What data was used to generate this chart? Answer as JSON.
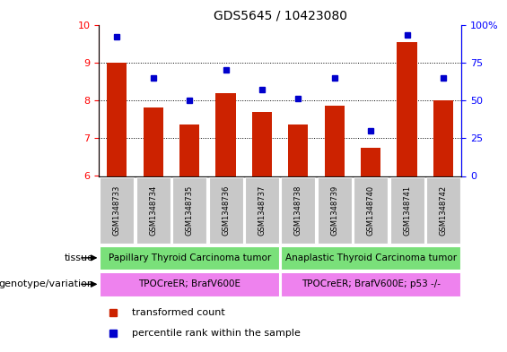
{
  "title": "GDS5645 / 10423080",
  "samples": [
    "GSM1348733",
    "GSM1348734",
    "GSM1348735",
    "GSM1348736",
    "GSM1348737",
    "GSM1348738",
    "GSM1348739",
    "GSM1348740",
    "GSM1348741",
    "GSM1348742"
  ],
  "transformed_count": [
    9.0,
    7.8,
    7.35,
    8.2,
    7.7,
    7.35,
    7.85,
    6.75,
    9.55,
    8.0
  ],
  "percentile_rank": [
    92,
    65,
    50,
    70,
    57,
    51,
    65,
    30,
    93,
    65
  ],
  "ylim_left": [
    6,
    10
  ],
  "ylim_right": [
    0,
    100
  ],
  "yticks_left": [
    6,
    7,
    8,
    9,
    10
  ],
  "yticks_right": [
    0,
    25,
    50,
    75,
    100
  ],
  "bar_color": "#cc2200",
  "dot_color": "#0000cc",
  "tissue_labels": [
    "Papillary Thyroid Carcinoma tumor",
    "Anaplastic Thyroid Carcinoma tumor"
  ],
  "tissue_color": "#7ae07a",
  "tissue_split": 5,
  "genotype_labels": [
    "TPOCreER; BrafV600E",
    "TPOCreER; BrafV600E; p53 -/-"
  ],
  "genotype_color": "#ee82ee",
  "genotype_split": 5,
  "legend_bar_label": "transformed count",
  "legend_dot_label": "percentile rank within the sample",
  "tissue_row_label": "tissue",
  "genotype_row_label": "genotype/variation",
  "label_area_color": "#c8c8c8"
}
